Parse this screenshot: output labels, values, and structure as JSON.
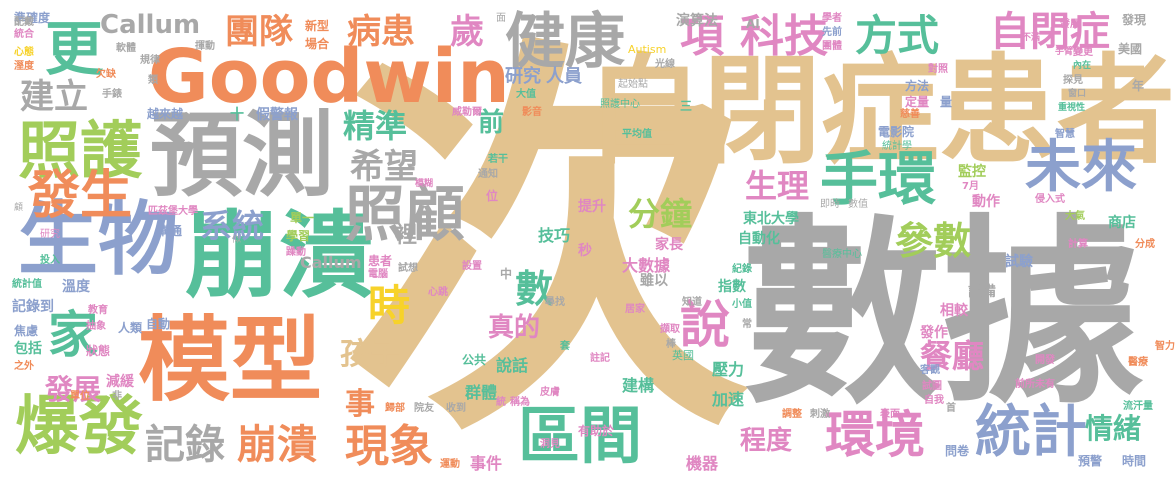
{
  "palette": {
    "tan": "#e3c38f",
    "gray": "#a8a8a8",
    "orange": "#f08c5a",
    "green": "#a2cd5a",
    "teal": "#56bf9a",
    "blue": "#8ca0cd",
    "pink": "#e087c2",
    "yellow": "#f7d22a"
  },
  "words": [
    {
      "t": "次",
      "c": "tan"
    },
    {
      "t": "數據",
      "c": "gray"
    },
    {
      "t": "自閉症患者",
      "c": "tan"
    },
    {
      "t": "Goodwin",
      "c": "orange"
    },
    {
      "t": "預測",
      "c": "gray"
    },
    {
      "t": "模型",
      "c": "orange"
    },
    {
      "t": "崩潰",
      "c": "teal"
    },
    {
      "t": "生物",
      "c": "blue"
    },
    {
      "t": "照護",
      "c": "green"
    },
    {
      "t": "爆發",
      "c": "green"
    },
    {
      "t": "健康",
      "c": "gray"
    },
    {
      "t": "照顧",
      "c": "gray"
    },
    {
      "t": "未來",
      "c": "blue"
    },
    {
      "t": "手環",
      "c": "teal"
    },
    {
      "t": "區間",
      "c": "teal"
    },
    {
      "t": "環境",
      "c": "pink"
    },
    {
      "t": "統計",
      "c": "blue"
    },
    {
      "t": "項",
      "c": "pink"
    },
    {
      "t": "科技",
      "c": "pink"
    },
    {
      "t": "方式",
      "c": "teal"
    },
    {
      "t": "自閉症",
      "c": "pink"
    },
    {
      "t": "更",
      "c": "teal"
    },
    {
      "t": "發生",
      "c": "orange"
    },
    {
      "t": "家",
      "c": "teal"
    },
    {
      "t": "團隊",
      "c": "orange"
    },
    {
      "t": "病患",
      "c": "orange"
    },
    {
      "t": "歲",
      "c": "pink"
    },
    {
      "t": "時",
      "c": "yellow"
    },
    {
      "t": "現象",
      "c": "orange"
    },
    {
      "t": "崩潰",
      "c": "orange"
    },
    {
      "t": "記錄",
      "c": "gray"
    },
    {
      "t": "希望",
      "c": "gray"
    },
    {
      "t": "系統",
      "c": "blue"
    },
    {
      "t": "精準",
      "c": "teal"
    },
    {
      "t": "說",
      "c": "pink"
    },
    {
      "t": "數",
      "c": "teal"
    },
    {
      "t": "餐廳",
      "c": "pink"
    },
    {
      "t": "參數",
      "c": "green"
    },
    {
      "t": "生理",
      "c": "pink"
    },
    {
      "t": "分鐘",
      "c": "green"
    },
    {
      "t": "建立",
      "c": "gray"
    },
    {
      "t": "Callum",
      "c": "gray"
    },
    {
      "t": "事",
      "c": "orange"
    },
    {
      "t": "孩子",
      "c": "tan"
    },
    {
      "t": "真的",
      "c": "pink"
    },
    {
      "t": "情緒",
      "c": "teal"
    },
    {
      "t": "程度",
      "c": "pink"
    },
    {
      "t": "發展",
      "c": "pink"
    },
    {
      "t": "前",
      "c": "teal"
    },
    {
      "t": "裡",
      "c": "gray"
    },
    {
      "t": "研究",
      "c": "blue"
    },
    {
      "t": "人員",
      "c": "blue"
    },
    {
      "t": "大數據",
      "c": "pink"
    },
    {
      "t": "技巧",
      "c": "teal"
    },
    {
      "t": "群體",
      "c": "teal"
    },
    {
      "t": "建構",
      "c": "teal"
    },
    {
      "t": "壓力",
      "c": "teal"
    },
    {
      "t": "加速",
      "c": "teal"
    },
    {
      "t": "說話",
      "c": "teal"
    },
    {
      "t": "機器",
      "c": "pink"
    },
    {
      "t": "事件",
      "c": "pink"
    },
    {
      "t": "提升",
      "c": "pink"
    },
    {
      "t": "家長",
      "c": "pink"
    },
    {
      "t": "雖以",
      "c": "gray"
    },
    {
      "t": "指數",
      "c": "teal"
    },
    {
      "t": "設備",
      "c": "gray"
    },
    {
      "t": "相較",
      "c": "pink"
    },
    {
      "t": "發作",
      "c": "pink"
    },
    {
      "t": "動作",
      "c": "pink"
    },
    {
      "t": "監控",
      "c": "green"
    },
    {
      "t": "試驗",
      "c": "blue"
    },
    {
      "t": "商店",
      "c": "teal"
    },
    {
      "t": "東北大學",
      "c": "teal"
    },
    {
      "t": "自動化",
      "c": "teal"
    },
    {
      "t": "演算法",
      "c": "gray"
    },
    {
      "t": "發現",
      "c": "gray"
    },
    {
      "t": "Autism",
      "c": "yellow"
    },
    {
      "t": "AI",
      "c": "gray"
    },
    {
      "t": "越來越",
      "c": "blue"
    },
    {
      "t": "假警報",
      "c": "blue"
    },
    {
      "t": "溫度",
      "c": "blue"
    },
    {
      "t": "記錄到",
      "c": "blue"
    },
    {
      "t": "包括",
      "c": "teal"
    },
    {
      "t": "焦慮",
      "c": "blue"
    },
    {
      "t": "減緩",
      "c": "pink"
    },
    {
      "t": "狀態",
      "c": "pink"
    },
    {
      "t": "人類",
      "c": "blue"
    },
    {
      "t": "自動",
      "c": "blue"
    },
    {
      "t": "學習",
      "c": "green"
    },
    {
      "t": "單一",
      "c": "green"
    },
    {
      "t": "溝通",
      "c": "blue"
    },
    {
      "t": "新型",
      "c": "orange"
    },
    {
      "t": "場合",
      "c": "orange"
    },
    {
      "t": "準確度",
      "c": "blue"
    },
    {
      "t": "統計學",
      "c": "teal"
    },
    {
      "t": "電影院",
      "c": "blue"
    },
    {
      "t": "定量",
      "c": "pink"
    },
    {
      "t": "方法",
      "c": "blue"
    },
    {
      "t": "時間",
      "c": "blue"
    },
    {
      "t": "問卷",
      "c": "blue"
    },
    {
      "t": "預警",
      "c": "blue"
    },
    {
      "t": "英國",
      "c": "teal"
    },
    {
      "t": "有助於",
      "c": "pink"
    },
    {
      "t": "公共",
      "c": "teal"
    },
    {
      "t": "美國",
      "c": "gray"
    },
    {
      "t": "年",
      "c": "gray"
    },
    {
      "t": "十",
      "c": "teal"
    },
    {
      "t": "三",
      "c": "teal"
    },
    {
      "t": "秒",
      "c": "pink"
    },
    {
      "t": "中",
      "c": "gray"
    },
    {
      "t": "位",
      "c": "pink"
    },
    {
      "t": "7月",
      "c": "pink"
    },
    {
      "t": "即時",
      "c": "gray"
    },
    {
      "t": "數值",
      "c": "gray"
    },
    {
      "t": "侵入式",
      "c": "pink"
    },
    {
      "t": "大氣",
      "c": "green"
    },
    {
      "t": "智慧",
      "c": "blue"
    },
    {
      "t": "計算",
      "c": "pink"
    },
    {
      "t": "分成",
      "c": "orange"
    },
    {
      "t": "流汗量",
      "c": "teal"
    },
    {
      "t": "智力",
      "c": "orange"
    },
    {
      "t": "醫療",
      "c": "orange"
    },
    {
      "t": "醫療中心",
      "c": "teal"
    },
    {
      "t": "紀錄",
      "c": "teal"
    },
    {
      "t": "小值",
      "c": "teal"
    },
    {
      "t": "常",
      "c": "gray"
    },
    {
      "t": "套",
      "c": "teal"
    },
    {
      "t": "居家",
      "c": "pink"
    },
    {
      "t": "知道",
      "c": "gray"
    },
    {
      "t": "擷取",
      "c": "pink"
    },
    {
      "t": "棒",
      "c": "gray"
    },
    {
      "t": "註記",
      "c": "pink"
    },
    {
      "t": "收到",
      "c": "gray"
    },
    {
      "t": "院友",
      "c": "gray"
    },
    {
      "t": "調整",
      "c": "orange"
    },
    {
      "t": "刺激",
      "c": "gray"
    },
    {
      "t": "表面",
      "c": "pink"
    },
    {
      "t": "首",
      "c": "gray"
    },
    {
      "t": "客觀",
      "c": "blue"
    },
    {
      "t": "試圖",
      "c": "pink"
    },
    {
      "t": "自我",
      "c": "pink"
    },
    {
      "t": "前所未有",
      "c": "pink"
    },
    {
      "t": "開發",
      "c": "pink"
    },
    {
      "t": "匹茲堡大學",
      "c": "pink"
    },
    {
      "t": "研究",
      "c": "pink"
    },
    {
      "t": "投入",
      "c": "teal"
    },
    {
      "t": "統計值",
      "c": "teal"
    },
    {
      "t": "教育",
      "c": "pink"
    },
    {
      "t": "抽象",
      "c": "pink"
    },
    {
      "t": "非",
      "c": "gray"
    },
    {
      "t": "之外",
      "c": "orange"
    },
    {
      "t": "單位",
      "c": "orange"
    },
    {
      "t": "躁動",
      "c": "pink"
    },
    {
      "t": "患者",
      "c": "pink"
    },
    {
      "t": "電腦",
      "c": "pink"
    },
    {
      "t": "試想",
      "c": "gray"
    },
    {
      "t": "設置",
      "c": "pink"
    },
    {
      "t": "心跳",
      "c": "pink"
    },
    {
      "t": "稱為",
      "c": "pink"
    },
    {
      "t": "統",
      "c": "pink"
    },
    {
      "t": "皮膚",
      "c": "pink"
    },
    {
      "t": "洞見",
      "c": "pink"
    },
    {
      "t": "運動",
      "c": "orange"
    },
    {
      "t": "歸部",
      "c": "orange"
    },
    {
      "t": "尋找",
      "c": "gray"
    },
    {
      "t": "平均值",
      "c": "teal"
    },
    {
      "t": "照護中心",
      "c": "teal"
    },
    {
      "t": "起始點",
      "c": "gray"
    },
    {
      "t": "大值",
      "c": "teal"
    },
    {
      "t": "影音",
      "c": "orange"
    },
    {
      "t": "威勒爾",
      "c": "pink"
    },
    {
      "t": "若干",
      "c": "teal"
    },
    {
      "t": "通知",
      "c": "gray"
    },
    {
      "t": "模糊",
      "c": "pink"
    },
    {
      "t": "光線",
      "c": "gray"
    },
    {
      "t": "學者",
      "c": "pink"
    },
    {
      "t": "先前",
      "c": "blue"
    },
    {
      "t": "團體",
      "c": "pink"
    },
    {
      "t": "對照",
      "c": "pink"
    },
    {
      "t": "發展",
      "c": "pink"
    },
    {
      "t": "手臂",
      "c": "pink"
    },
    {
      "t": "變更",
      "c": "pink"
    },
    {
      "t": "內在",
      "c": "teal"
    },
    {
      "t": "探見",
      "c": "gray"
    },
    {
      "t": "不滿",
      "c": "pink"
    },
    {
      "t": "面",
      "c": "gray"
    },
    {
      "t": "揮動",
      "c": "gray"
    },
    {
      "t": "軟體",
      "c": "gray"
    },
    {
      "t": "統合",
      "c": "pink"
    },
    {
      "t": "心態",
      "c": "yellow"
    },
    {
      "t": "配戴",
      "c": "gray"
    },
    {
      "t": "溼度",
      "c": "orange"
    },
    {
      "t": "規律",
      "c": "gray"
    },
    {
      "t": "欠缺",
      "c": "orange"
    },
    {
      "t": "手錶",
      "c": "gray"
    },
    {
      "t": "類",
      "c": "gray"
    },
    {
      "t": "重視性",
      "c": "teal"
    },
    {
      "t": "窗口",
      "c": "gray"
    },
    {
      "t": "慈善",
      "c": "orange"
    },
    {
      "t": "量",
      "c": "blue"
    },
    {
      "t": "似",
      "c": "gray"
    },
    {
      "t": "顧",
      "c": "gray"
    }
  ]
}
